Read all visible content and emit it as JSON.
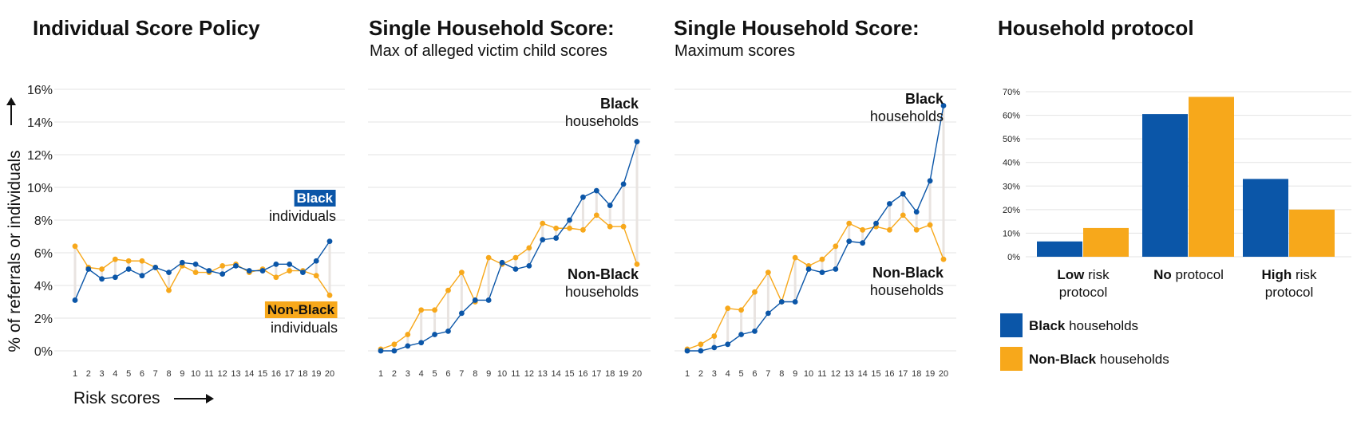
{
  "colors": {
    "black_series": "#0b56a8",
    "nonblack_series": "#f7a81b",
    "grid": "#e3e3e3",
    "connector": "#e9e4e1"
  },
  "y_axis_label": "% of referrals or individuals",
  "x_axis_label": "Risk scores",
  "chart_data": [
    {
      "type": "line",
      "title": "Individual Score Policy",
      "subtitle": "",
      "x": [
        1,
        2,
        3,
        4,
        5,
        6,
        7,
        8,
        9,
        10,
        11,
        12,
        13,
        14,
        15,
        16,
        17,
        18,
        19,
        20
      ],
      "ylim": [
        0,
        16
      ],
      "y_ticks": [
        "0%",
        "2%",
        "4%",
        "6%",
        "8%",
        "10%",
        "12%",
        "14%",
        "16%"
      ],
      "series": [
        {
          "name": "Black",
          "name_suffix": "individuals",
          "values": [
            3.1,
            5.0,
            4.4,
            4.5,
            5.0,
            4.6,
            5.1,
            4.8,
            5.4,
            5.3,
            4.9,
            4.7,
            5.2,
            4.9,
            4.9,
            5.3,
            5.3,
            4.8,
            5.5,
            6.7
          ]
        },
        {
          "name": "Non-Black",
          "name_suffix": "individuals",
          "values": [
            6.4,
            5.1,
            5.0,
            5.6,
            5.5,
            5.5,
            5.1,
            3.7,
            5.2,
            4.8,
            4.8,
            5.2,
            5.3,
            4.8,
            5.0,
            4.5,
            4.9,
            4.9,
            4.6,
            3.4
          ]
        }
      ]
    },
    {
      "type": "line",
      "title": "Single Household Score:",
      "subtitle": "Max of alleged victim child scores",
      "x": [
        1,
        2,
        3,
        4,
        5,
        6,
        7,
        8,
        9,
        10,
        11,
        12,
        13,
        14,
        15,
        16,
        17,
        18,
        19,
        20
      ],
      "ylim": [
        0,
        16
      ],
      "series": [
        {
          "name": "Black",
          "name_suffix": "households",
          "values": [
            0.0,
            0.0,
            0.3,
            0.5,
            1.0,
            1.2,
            2.3,
            3.1,
            3.1,
            5.4,
            5.0,
            5.2,
            6.8,
            6.9,
            8.0,
            9.4,
            9.8,
            8.9,
            10.2,
            12.8
          ]
        },
        {
          "name": "Non-Black",
          "name_suffix": "households",
          "values": [
            0.1,
            0.4,
            1.0,
            2.5,
            2.5,
            3.7,
            4.8,
            3.0,
            5.7,
            5.3,
            5.7,
            6.3,
            7.8,
            7.5,
            7.5,
            7.4,
            8.3,
            7.6,
            7.6,
            5.3
          ]
        }
      ]
    },
    {
      "type": "line",
      "title": "Single Household Score:",
      "subtitle": "Maximum scores",
      "x": [
        1,
        2,
        3,
        4,
        5,
        6,
        7,
        8,
        9,
        10,
        11,
        12,
        13,
        14,
        15,
        16,
        17,
        18,
        19,
        20
      ],
      "ylim": [
        0,
        16
      ],
      "series": [
        {
          "name": "Black",
          "name_suffix": "households",
          "values": [
            0.0,
            0.0,
            0.2,
            0.4,
            1.0,
            1.2,
            2.3,
            3.0,
            3.0,
            5.0,
            4.8,
            5.0,
            6.7,
            6.6,
            7.8,
            9.0,
            9.6,
            8.5,
            10.4,
            15.0
          ]
        },
        {
          "name": "Non-Black",
          "name_suffix": "households",
          "values": [
            0.1,
            0.4,
            0.9,
            2.6,
            2.5,
            3.6,
            4.8,
            3.0,
            5.7,
            5.2,
            5.6,
            6.4,
            7.8,
            7.4,
            7.6,
            7.4,
            8.3,
            7.4,
            7.7,
            5.6
          ]
        }
      ]
    },
    {
      "type": "bar",
      "title": "Household protocol",
      "ylim": [
        0,
        70
      ],
      "y_ticks": [
        "0%",
        "10%",
        "20%",
        "30%",
        "40%",
        "50%",
        "60%",
        "70%"
      ],
      "categories": [
        {
          "bold": "Low",
          "rest": " risk",
          "line2": "protocol"
        },
        {
          "bold": "No",
          "rest": " protocol",
          "line2": ""
        },
        {
          "bold": "High",
          "rest": " risk",
          "line2": "protocol"
        }
      ],
      "series": [
        {
          "name": "Black",
          "legend_suffix": " households",
          "values": [
            6.5,
            60.5,
            33.0
          ]
        },
        {
          "name": "Non-Black",
          "legend_suffix": " households",
          "values": [
            12.2,
            67.8,
            20.0
          ]
        }
      ]
    }
  ]
}
